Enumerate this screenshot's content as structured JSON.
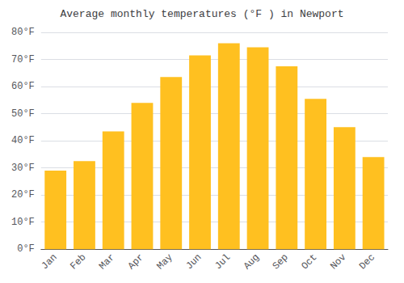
{
  "chart_data": {
    "type": "bar",
    "title": "Average monthly temperatures (°F ) in Newport",
    "categories": [
      "Jan",
      "Feb",
      "Mar",
      "Apr",
      "May",
      "Jun",
      "Jul",
      "Aug",
      "Sep",
      "Oct",
      "Nov",
      "Dec"
    ],
    "values": [
      29,
      32.5,
      43.5,
      54,
      63.5,
      71.5,
      76,
      74.5,
      67.5,
      55.5,
      45,
      34
    ],
    "color": "#FFC020",
    "ylim": [
      0,
      80
    ],
    "yticks": [
      {
        "value": 0,
        "label": "0°F"
      },
      {
        "value": 10,
        "label": "10°F"
      },
      {
        "value": 20,
        "label": "20°F"
      },
      {
        "value": 30,
        "label": "30°F"
      },
      {
        "value": 40,
        "label": "40°F"
      },
      {
        "value": 50,
        "label": "50°F"
      },
      {
        "value": 60,
        "label": "60°F"
      },
      {
        "value": 70,
        "label": "70°F"
      },
      {
        "value": 80,
        "label": "80°F"
      }
    ],
    "grid": true
  }
}
